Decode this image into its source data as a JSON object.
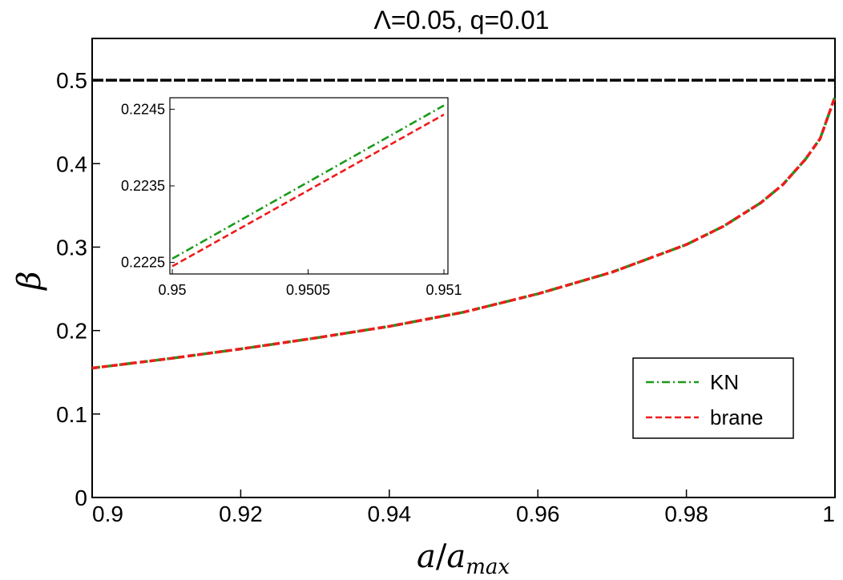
{
  "chart_data": {
    "type": "line",
    "title": "Λ=0.05, q=0.01",
    "xlabel": {
      "main": "a",
      "slash": "/",
      "var": "a",
      "sub": "max"
    },
    "ylabel": "β",
    "xlim": [
      0.9,
      1.0
    ],
    "ylim": [
      0,
      0.55
    ],
    "xticks": [
      0.9,
      0.92,
      0.94,
      0.96,
      0.98,
      1.0
    ],
    "xtick_labels": [
      "0.9",
      "0.92",
      "0.94",
      "0.96",
      "0.98",
      "1"
    ],
    "yticks": [
      0,
      0.1,
      0.2,
      0.3,
      0.4,
      0.5
    ],
    "ytick_labels": [
      "0",
      "0.1",
      "0.2",
      "0.3",
      "0.4",
      "0.5"
    ],
    "grid": false,
    "legend_position": "bottom-right",
    "reference_line": {
      "y": 0.5,
      "color": "#000000",
      "style": "dashed"
    },
    "series": [
      {
        "name": "KN",
        "color": "#1a9a1a",
        "style": "dash-dot",
        "x": [
          0.9,
          0.91,
          0.92,
          0.93,
          0.94,
          0.95,
          0.96,
          0.97,
          0.98,
          0.985,
          0.99,
          0.993,
          0.996,
          0.998,
          1.0
        ],
        "y": [
          0.155,
          0.166,
          0.178,
          0.191,
          0.205,
          0.222,
          0.244,
          0.27,
          0.303,
          0.325,
          0.353,
          0.375,
          0.405,
          0.43,
          0.48
        ]
      },
      {
        "name": "brane",
        "color": "#ee1c1c",
        "style": "dashed",
        "x": [
          0.9,
          0.91,
          0.92,
          0.93,
          0.94,
          0.95,
          0.96,
          0.97,
          0.98,
          0.985,
          0.99,
          0.993,
          0.996,
          0.998,
          1.0
        ],
        "y": [
          0.155,
          0.166,
          0.178,
          0.191,
          0.205,
          0.222,
          0.244,
          0.27,
          0.303,
          0.325,
          0.353,
          0.375,
          0.405,
          0.43,
          0.48
        ]
      }
    ],
    "inset": {
      "xlim": [
        0.95,
        0.951
      ],
      "ylim": [
        0.22235,
        0.22465
      ],
      "xticks": [
        0.95,
        0.9505,
        0.951
      ],
      "xtick_labels": [
        "0.95",
        "0.9505",
        "0.951"
      ],
      "yticks": [
        0.2225,
        0.2235,
        0.2245
      ],
      "ytick_labels": [
        "0.2225",
        "0.2235",
        "0.2245"
      ],
      "series": [
        {
          "name": "KN",
          "color": "#1a9a1a",
          "style": "dash-dot",
          "x": [
            0.95,
            0.951
          ],
          "y": [
            0.22255,
            0.22455
          ]
        },
        {
          "name": "brane",
          "color": "#ee1c1c",
          "style": "dashed",
          "x": [
            0.95,
            0.951
          ],
          "y": [
            0.22245,
            0.22443
          ]
        }
      ]
    }
  }
}
